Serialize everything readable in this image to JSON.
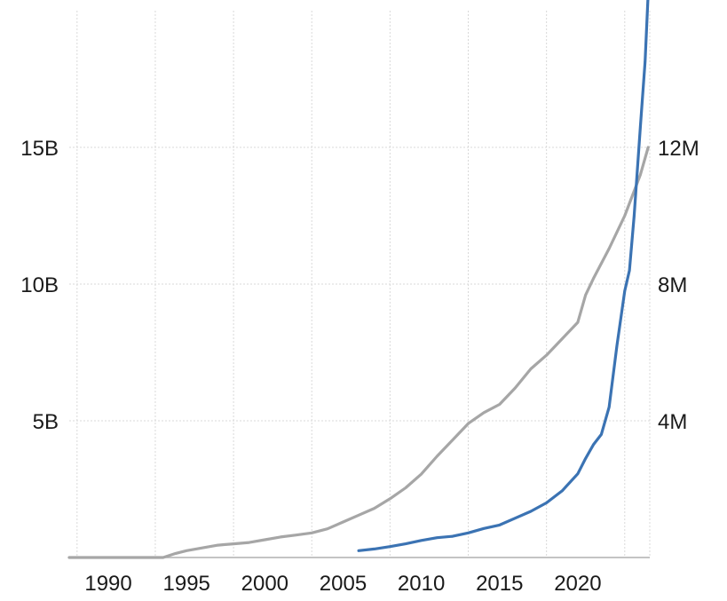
{
  "chart_data": {
    "type": "line",
    "title": "",
    "x_axis": {
      "range": [
        1987.5,
        2024.6
      ],
      "ticks": [
        1990,
        1995,
        2000,
        2005,
        2010,
        2015,
        2020
      ],
      "tick_labels": [
        "1990",
        "1995",
        "2000",
        "2005",
        "2010",
        "2015",
        "2020"
      ]
    },
    "y_left": {
      "range": [
        0,
        20
      ],
      "ticks": [
        5,
        10,
        15
      ],
      "tick_labels": [
        "5B",
        "10B",
        "15B"
      ]
    },
    "y_right": {
      "range": [
        0,
        16
      ],
      "ticks": [
        4,
        8,
        12
      ],
      "tick_labels": [
        "4M",
        "8M",
        "12M"
      ]
    },
    "grid": true,
    "legend": "none",
    "series": [
      {
        "axis": "left",
        "color": "#a6a6a6",
        "points": [
          [
            1987.5,
            0
          ],
          [
            1993.5,
            0
          ],
          [
            1994.3,
            0.15
          ],
          [
            1995,
            0.25
          ],
          [
            1996,
            0.35
          ],
          [
            1997,
            0.45
          ],
          [
            1998,
            0.5
          ],
          [
            1999,
            0.55
          ],
          [
            2000,
            0.65
          ],
          [
            2001,
            0.75
          ],
          [
            2002,
            0.82
          ],
          [
            2003,
            0.9
          ],
          [
            2004,
            1.05
          ],
          [
            2005,
            1.3
          ],
          [
            2006,
            1.55
          ],
          [
            2007,
            1.8
          ],
          [
            2008,
            2.15
          ],
          [
            2009,
            2.55
          ],
          [
            2010,
            3.05
          ],
          [
            2011,
            3.7
          ],
          [
            2012,
            4.3
          ],
          [
            2013,
            4.9
          ],
          [
            2014,
            5.3
          ],
          [
            2015,
            5.6
          ],
          [
            2016,
            6.2
          ],
          [
            2017,
            6.9
          ],
          [
            2018,
            7.4
          ],
          [
            2019,
            8.0
          ],
          [
            2020,
            8.6
          ],
          [
            2020.5,
            9.6
          ],
          [
            2021,
            10.2
          ],
          [
            2022,
            11.3
          ],
          [
            2023,
            12.5
          ],
          [
            2024,
            14.0
          ],
          [
            2024.5,
            15.0
          ]
        ]
      },
      {
        "axis": "right",
        "color": "#3b73b3",
        "points": [
          [
            2006,
            0.2
          ],
          [
            2007,
            0.25
          ],
          [
            2008,
            0.32
          ],
          [
            2009,
            0.4
          ],
          [
            2010,
            0.5
          ],
          [
            2011,
            0.58
          ],
          [
            2012,
            0.62
          ],
          [
            2013,
            0.72
          ],
          [
            2014,
            0.85
          ],
          [
            2015,
            0.95
          ],
          [
            2016,
            1.15
          ],
          [
            2017,
            1.35
          ],
          [
            2018,
            1.6
          ],
          [
            2019,
            1.95
          ],
          [
            2020,
            2.45
          ],
          [
            2020.5,
            2.9
          ],
          [
            2021,
            3.3
          ],
          [
            2021.5,
            3.6
          ],
          [
            2022,
            4.4
          ],
          [
            2022.5,
            6.2
          ],
          [
            2023,
            7.8
          ],
          [
            2023.3,
            8.4
          ],
          [
            2023.6,
            10.0
          ],
          [
            2024,
            12.6
          ],
          [
            2024.3,
            14.5
          ],
          [
            2024.5,
            16.5
          ]
        ]
      }
    ]
  }
}
